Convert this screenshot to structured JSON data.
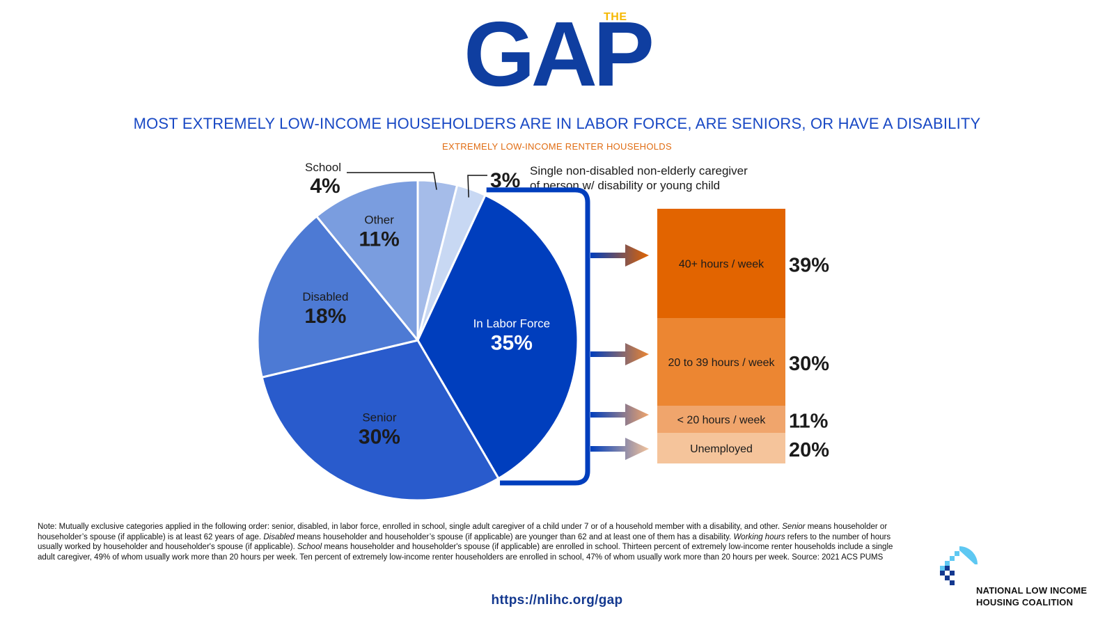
{
  "logo": {
    "the": "THE",
    "gap": "GAP"
  },
  "title": "MOST EXTREMELY LOW-INCOME HOUSEHOLDERS ARE IN LABOR FORCE, ARE SENIORS, OR HAVE A DISABILITY",
  "subtitle": "EXTREMELY LOW-INCOME RENTER HOUSEHOLDS",
  "colors": {
    "labor": "#003ebd",
    "senior": "#295bcc",
    "disabled": "#4d7ad4",
    "other": "#7a9ddf",
    "school": "#a5bce9",
    "caregiver": "#c8d8f3",
    "hours40": "#e26400",
    "hours20_39": "#ec8632",
    "hoursLt20": "#f0a56c",
    "unemployed": "#f5c49b"
  },
  "chart_data": [
    {
      "type": "pie",
      "slices": [
        {
          "label": "School",
          "value": 4,
          "display": "4%"
        },
        {
          "label": "Single non-disabled non-elderly caregiver of person w/ disability or young child",
          "label_line1": "Single non-disabled non-elderly caregiver",
          "label_line2": "of person w/ disability or young child",
          "value": 3,
          "display": "3%"
        },
        {
          "label": "In Labor Force",
          "value": 35,
          "display": "35%"
        },
        {
          "label": "Senior",
          "value": 30,
          "display": "30%"
        },
        {
          "label": "Disabled",
          "value": 18,
          "display": "18%"
        },
        {
          "label": "Other",
          "value": 11,
          "display": "11%"
        }
      ]
    },
    {
      "type": "bar",
      "orientation": "stacked-vertical",
      "categories": [
        "40+ hours / week",
        "20 to 39 hours / week",
        "< 20 hours / week",
        "Unemployed"
      ],
      "values": [
        39,
        30,
        11,
        20
      ],
      "display": [
        "39%",
        "30%",
        "11%",
        "20%"
      ]
    }
  ],
  "note_html": "Note: Mutually exclusive categories applied in the following order: senior, disabled, in labor force, enrolled in school, single adult caregiver of a child under 7 or of a household member with a disability, and other. <i>Senior</i> means householder or householder’s spouse (if applicable) is at least 62 years of age. <i>Disabled</i> means householder and householder’s spouse (if applicable) are younger than 62 and at least one of them has a disability. <i>Working hours</i> refers to the number of hours usually worked by householder and householder's spouse (if applicable). <i>School</i> means householder and householder's spouse (if applicable) are enrolled in school. Thirteen percent of extremely low-income renter households include a single adult caregiver, 49% of whom usually work more than 20 hours per week. Ten percent of extremely low-income renter householders are enrolled in school, 47% of whom usually work more than 20 hours per week. Source: 2021 ACS PUMS",
  "url": "https://nlihc.org/gap",
  "org": {
    "line1": "NATIONAL LOW INCOME",
    "line2": "HOUSING COALITION"
  }
}
